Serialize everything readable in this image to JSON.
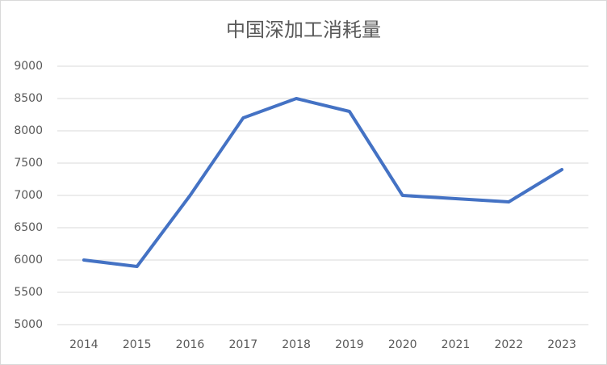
{
  "chart_data": {
    "type": "line",
    "title": "中国深加工消耗量",
    "categories": [
      "2014",
      "2015",
      "2016",
      "2017",
      "2018",
      "2019",
      "2020",
      "2021",
      "2022",
      "2023"
    ],
    "values": [
      6000,
      5900,
      7000,
      8200,
      8500,
      8300,
      7000,
      6950,
      6900,
      7400
    ],
    "color": "#4472c4",
    "ylim": [
      5000,
      9000
    ],
    "yticks": [
      5000,
      5500,
      6000,
      6500,
      7000,
      7500,
      8000,
      8500,
      9000
    ],
    "grid": true
  }
}
